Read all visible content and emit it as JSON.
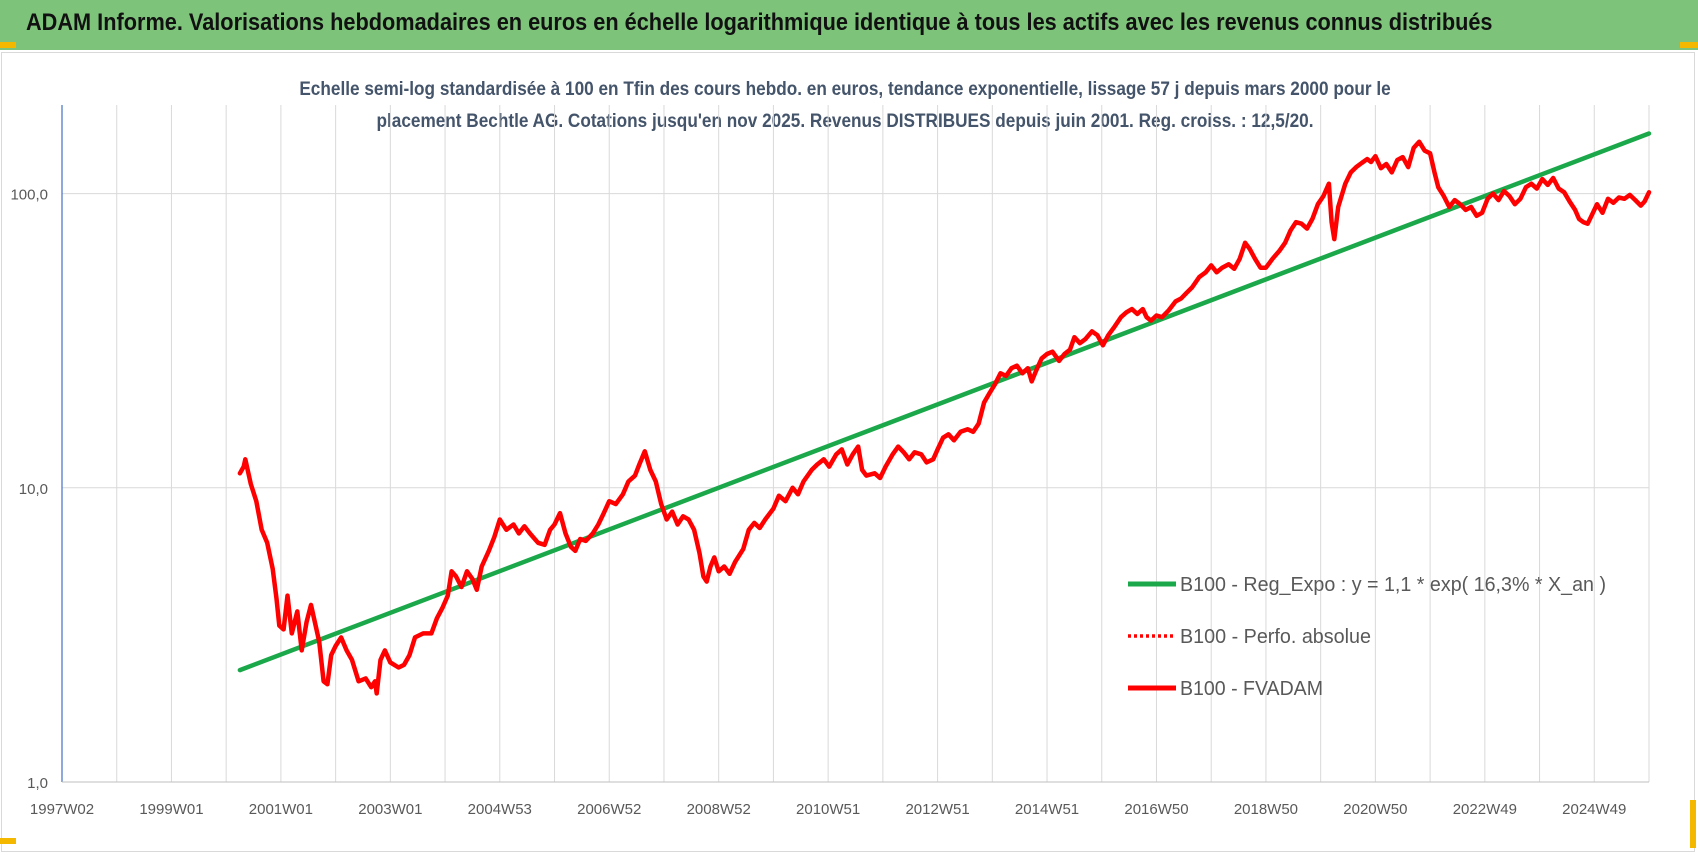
{
  "banner": {
    "title": "ADAM Informe. Valorisations hebdomadaires en euros en échelle logarithmique identique à tous les actifs avec les revenus connus distribués",
    "color": "#7dc47a"
  },
  "chart_data": {
    "type": "line",
    "title_line1": "Echelle semi-log standardisée à 100 en Tfin des cours hebdo. en euros, tendance exponentielle, lissage 57 j depuis mars 2000 pour le",
    "title_line2": "placement Bechtle AG. Cotations jusqu'en nov 2025. Revenus DISTRIBUES depuis juin 2001. Reg. croiss. : 12,5/20.",
    "y_scale": "log",
    "ylim": [
      1,
      200
    ],
    "y_ticks": [
      {
        "value": 1,
        "label": "1,0"
      },
      {
        "value": 10,
        "label": "10,0"
      },
      {
        "value": 100,
        "label": "100,0"
      }
    ],
    "x_range": [
      1997.0,
      2026.0
    ],
    "x_ticks": [
      {
        "value": 1997.0,
        "label": "1997W02"
      },
      {
        "value": 1999.0,
        "label": "1999W01"
      },
      {
        "value": 2001.0,
        "label": "2001W01"
      },
      {
        "value": 2003.0,
        "label": "2003W01"
      },
      {
        "value": 2005.0,
        "label": "2004W53"
      },
      {
        "value": 2007.0,
        "label": "2006W52"
      },
      {
        "value": 2009.0,
        "label": "2008W52"
      },
      {
        "value": 2011.0,
        "label": "2010W51"
      },
      {
        "value": 2013.0,
        "label": "2012W51"
      },
      {
        "value": 2015.0,
        "label": "2014W51"
      },
      {
        "value": 2017.0,
        "label": "2016W50"
      },
      {
        "value": 2019.0,
        "label": "2018W50"
      },
      {
        "value": 2021.0,
        "label": "2020W50"
      },
      {
        "value": 2023.0,
        "label": "2022W49"
      },
      {
        "value": 2025.0,
        "label": "2024W49"
      }
    ],
    "grid": "vertical",
    "legend_position": "bottom-right",
    "series": [
      {
        "name": "B100 - Reg_Expo : y = 1,1 * exp( 16,3% *  X_an )",
        "color": "#1aa84a",
        "style": "solid",
        "points": [
          [
            2000.25,
            2.4
          ],
          [
            2026.0,
            160
          ]
        ]
      },
      {
        "name": "B100 - Perfo. absolue",
        "color": "#ff0000",
        "style": "dotted",
        "points": []
      },
      {
        "name": "B100 - FVADAM",
        "color": "#ff0000",
        "style": "solid",
        "points": [
          [
            2000.25,
            11.2
          ],
          [
            2000.32,
            11.8
          ],
          [
            2000.35,
            12.5
          ],
          [
            2000.45,
            10.3
          ],
          [
            2000.55,
            9.0
          ],
          [
            2000.65,
            7.2
          ],
          [
            2000.75,
            6.5
          ],
          [
            2000.85,
            5.3
          ],
          [
            2000.92,
            4.2
          ],
          [
            2000.97,
            3.4
          ],
          [
            2001.05,
            3.3
          ],
          [
            2001.12,
            4.3
          ],
          [
            2001.2,
            3.2
          ],
          [
            2001.3,
            3.8
          ],
          [
            2001.38,
            2.8
          ],
          [
            2001.47,
            3.5
          ],
          [
            2001.55,
            4.0
          ],
          [
            2001.62,
            3.5
          ],
          [
            2001.7,
            3.0
          ],
          [
            2001.78,
            2.2
          ],
          [
            2001.85,
            2.15
          ],
          [
            2001.92,
            2.7
          ],
          [
            2002.0,
            2.9
          ],
          [
            2002.1,
            3.1
          ],
          [
            2002.2,
            2.8
          ],
          [
            2002.3,
            2.6
          ],
          [
            2002.42,
            2.2
          ],
          [
            2002.55,
            2.25
          ],
          [
            2002.65,
            2.1
          ],
          [
            2002.72,
            2.2
          ],
          [
            2002.75,
            2.0
          ],
          [
            2002.82,
            2.6
          ],
          [
            2002.9,
            2.8
          ],
          [
            2003.0,
            2.55
          ],
          [
            2003.15,
            2.45
          ],
          [
            2003.25,
            2.5
          ],
          [
            2003.35,
            2.7
          ],
          [
            2003.45,
            3.1
          ],
          [
            2003.6,
            3.2
          ],
          [
            2003.75,
            3.2
          ],
          [
            2003.85,
            3.6
          ],
          [
            2003.95,
            3.9
          ],
          [
            2004.05,
            4.3
          ],
          [
            2004.12,
            5.2
          ],
          [
            2004.2,
            5.0
          ],
          [
            2004.3,
            4.6
          ],
          [
            2004.4,
            5.2
          ],
          [
            2004.5,
            4.9
          ],
          [
            2004.58,
            4.5
          ],
          [
            2004.67,
            5.4
          ],
          [
            2004.8,
            6.1
          ],
          [
            2004.9,
            6.8
          ],
          [
            2005.0,
            7.8
          ],
          [
            2005.12,
            7.2
          ],
          [
            2005.25,
            7.5
          ],
          [
            2005.35,
            7.0
          ],
          [
            2005.45,
            7.4
          ],
          [
            2005.55,
            7.0
          ],
          [
            2005.7,
            6.5
          ],
          [
            2005.82,
            6.4
          ],
          [
            2005.92,
            7.2
          ],
          [
            2006.0,
            7.5
          ],
          [
            2006.1,
            8.2
          ],
          [
            2006.2,
            7.0
          ],
          [
            2006.3,
            6.3
          ],
          [
            2006.38,
            6.1
          ],
          [
            2006.47,
            6.7
          ],
          [
            2006.57,
            6.6
          ],
          [
            2006.7,
            7.0
          ],
          [
            2006.8,
            7.5
          ],
          [
            2006.9,
            8.2
          ],
          [
            2007.0,
            9.0
          ],
          [
            2007.12,
            8.8
          ],
          [
            2007.25,
            9.5
          ],
          [
            2007.35,
            10.5
          ],
          [
            2007.47,
            11.0
          ],
          [
            2007.55,
            12.0
          ],
          [
            2007.65,
            13.3
          ],
          [
            2007.75,
            11.5
          ],
          [
            2007.85,
            10.5
          ],
          [
            2007.95,
            8.8
          ],
          [
            2008.05,
            7.8
          ],
          [
            2008.15,
            8.3
          ],
          [
            2008.25,
            7.5
          ],
          [
            2008.35,
            8.0
          ],
          [
            2008.45,
            7.8
          ],
          [
            2008.55,
            7.2
          ],
          [
            2008.65,
            6.0
          ],
          [
            2008.72,
            5.0
          ],
          [
            2008.78,
            4.8
          ],
          [
            2008.85,
            5.4
          ],
          [
            2008.92,
            5.8
          ],
          [
            2009.0,
            5.2
          ],
          [
            2009.1,
            5.4
          ],
          [
            2009.2,
            5.1
          ],
          [
            2009.3,
            5.6
          ],
          [
            2009.45,
            6.2
          ],
          [
            2009.55,
            7.2
          ],
          [
            2009.65,
            7.6
          ],
          [
            2009.75,
            7.3
          ],
          [
            2009.85,
            7.8
          ],
          [
            2010.0,
            8.5
          ],
          [
            2010.1,
            9.4
          ],
          [
            2010.22,
            9.0
          ],
          [
            2010.35,
            10.0
          ],
          [
            2010.45,
            9.5
          ],
          [
            2010.55,
            10.5
          ],
          [
            2010.7,
            11.5
          ],
          [
            2010.8,
            12.0
          ],
          [
            2010.92,
            12.5
          ],
          [
            2011.02,
            11.8
          ],
          [
            2011.15,
            13.0
          ],
          [
            2011.25,
            13.5
          ],
          [
            2011.35,
            12.0
          ],
          [
            2011.45,
            13.0
          ],
          [
            2011.55,
            13.8
          ],
          [
            2011.62,
            11.5
          ],
          [
            2011.7,
            11.0
          ],
          [
            2011.85,
            11.2
          ],
          [
            2011.95,
            10.8
          ],
          [
            2012.05,
            11.8
          ],
          [
            2012.18,
            13.0
          ],
          [
            2012.28,
            13.8
          ],
          [
            2012.38,
            13.2
          ],
          [
            2012.48,
            12.5
          ],
          [
            2012.58,
            13.2
          ],
          [
            2012.7,
            13.0
          ],
          [
            2012.8,
            12.2
          ],
          [
            2012.92,
            12.5
          ],
          [
            2013.0,
            13.5
          ],
          [
            2013.1,
            14.8
          ],
          [
            2013.2,
            15.2
          ],
          [
            2013.3,
            14.5
          ],
          [
            2013.42,
            15.5
          ],
          [
            2013.55,
            15.8
          ],
          [
            2013.65,
            15.5
          ],
          [
            2013.75,
            16.5
          ],
          [
            2013.85,
            19.5
          ],
          [
            2013.95,
            21.0
          ],
          [
            2014.05,
            22.5
          ],
          [
            2014.15,
            24.5
          ],
          [
            2014.25,
            24.0
          ],
          [
            2014.35,
            25.5
          ],
          [
            2014.45,
            26.0
          ],
          [
            2014.55,
            24.5
          ],
          [
            2014.65,
            25.5
          ],
          [
            2014.72,
            23.0
          ],
          [
            2014.8,
            25.0
          ],
          [
            2014.9,
            27.5
          ],
          [
            2015.0,
            28.5
          ],
          [
            2015.1,
            29.0
          ],
          [
            2015.22,
            27.0
          ],
          [
            2015.32,
            28.5
          ],
          [
            2015.42,
            29.5
          ],
          [
            2015.5,
            32.5
          ],
          [
            2015.6,
            31.0
          ],
          [
            2015.7,
            32.0
          ],
          [
            2015.82,
            34.0
          ],
          [
            2015.92,
            33.0
          ],
          [
            2016.02,
            30.5
          ],
          [
            2016.12,
            33.0
          ],
          [
            2016.22,
            35.0
          ],
          [
            2016.35,
            38.0
          ],
          [
            2016.45,
            39.5
          ],
          [
            2016.55,
            40.5
          ],
          [
            2016.65,
            39.0
          ],
          [
            2016.75,
            40.5
          ],
          [
            2016.82,
            38.0
          ],
          [
            2016.9,
            37.0
          ],
          [
            2017.0,
            38.5
          ],
          [
            2017.1,
            38.0
          ],
          [
            2017.22,
            40.0
          ],
          [
            2017.35,
            43.0
          ],
          [
            2017.45,
            44.0
          ],
          [
            2017.55,
            46.0
          ],
          [
            2017.65,
            48.0
          ],
          [
            2017.78,
            52.0
          ],
          [
            2017.9,
            54.0
          ],
          [
            2018.0,
            57.0
          ],
          [
            2018.1,
            54.0
          ],
          [
            2018.2,
            56.0
          ],
          [
            2018.32,
            57.5
          ],
          [
            2018.42,
            55.5
          ],
          [
            2018.52,
            60.0
          ],
          [
            2018.62,
            68.0
          ],
          [
            2018.7,
            65.0
          ],
          [
            2018.8,
            60.0
          ],
          [
            2018.9,
            56.0
          ],
          [
            2019.0,
            56.0
          ],
          [
            2019.12,
            60.0
          ],
          [
            2019.25,
            64.0
          ],
          [
            2019.35,
            68.0
          ],
          [
            2019.45,
            75.0
          ],
          [
            2019.55,
            80.0
          ],
          [
            2019.65,
            79.0
          ],
          [
            2019.75,
            76.0
          ],
          [
            2019.85,
            82.0
          ],
          [
            2019.95,
            92.0
          ],
          [
            2020.05,
            98.0
          ],
          [
            2020.15,
            108.0
          ],
          [
            2020.2,
            80.0
          ],
          [
            2020.25,
            70.0
          ],
          [
            2020.32,
            90.0
          ],
          [
            2020.45,
            108.0
          ],
          [
            2020.55,
            118.0
          ],
          [
            2020.65,
            123.0
          ],
          [
            2020.75,
            127.0
          ],
          [
            2020.85,
            131.0
          ],
          [
            2020.92,
            128.0
          ],
          [
            2021.0,
            134.0
          ],
          [
            2021.1,
            122.0
          ],
          [
            2021.2,
            126.0
          ],
          [
            2021.3,
            118.0
          ],
          [
            2021.4,
            130.0
          ],
          [
            2021.5,
            133.0
          ],
          [
            2021.6,
            123.0
          ],
          [
            2021.7,
            143.0
          ],
          [
            2021.8,
            150.0
          ],
          [
            2021.9,
            140.0
          ],
          [
            2022.0,
            137.0
          ],
          [
            2022.08,
            118.0
          ],
          [
            2022.15,
            105.0
          ],
          [
            2022.25,
            98.0
          ],
          [
            2022.35,
            90.0
          ],
          [
            2022.45,
            95.0
          ],
          [
            2022.55,
            92.0
          ],
          [
            2022.65,
            88.0
          ],
          [
            2022.75,
            90.0
          ],
          [
            2022.85,
            84.0
          ],
          [
            2022.95,
            86.0
          ],
          [
            2023.05,
            96.0
          ],
          [
            2023.15,
            100.0
          ],
          [
            2023.25,
            95.0
          ],
          [
            2023.35,
            102.0
          ],
          [
            2023.45,
            98.0
          ],
          [
            2023.55,
            92.0
          ],
          [
            2023.65,
            96.0
          ],
          [
            2023.75,
            105.0
          ],
          [
            2023.85,
            108.0
          ],
          [
            2023.95,
            104.0
          ],
          [
            2024.05,
            112.0
          ],
          [
            2024.15,
            107.0
          ],
          [
            2024.25,
            113.0
          ],
          [
            2024.35,
            104.0
          ],
          [
            2024.45,
            101.0
          ],
          [
            2024.55,
            94.0
          ],
          [
            2024.65,
            88.0
          ],
          [
            2024.72,
            82.0
          ],
          [
            2024.8,
            80.0
          ],
          [
            2024.88,
            79.0
          ],
          [
            2024.95,
            84.0
          ],
          [
            2025.05,
            92.0
          ],
          [
            2025.15,
            86.0
          ],
          [
            2025.25,
            96.0
          ],
          [
            2025.35,
            93.0
          ],
          [
            2025.45,
            97.0
          ],
          [
            2025.55,
            96.0
          ],
          [
            2025.65,
            99.0
          ],
          [
            2025.75,
            95.0
          ],
          [
            2025.85,
            91.0
          ],
          [
            2025.92,
            94.0
          ],
          [
            2026.0,
            101.0
          ]
        ]
      }
    ]
  }
}
